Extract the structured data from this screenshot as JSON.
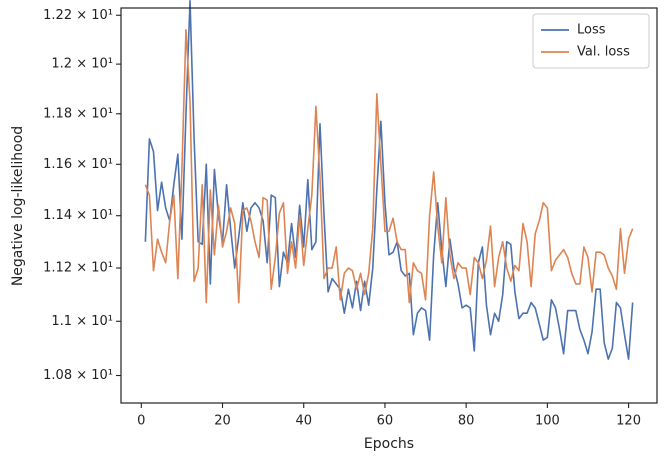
{
  "chart_data": {
    "type": "line",
    "xlabel": "Epochs",
    "ylabel": "Negative log-likelihood",
    "x": [
      1,
      2,
      3,
      4,
      5,
      6,
      7,
      8,
      9,
      10,
      11,
      12,
      13,
      14,
      15,
      16,
      17,
      18,
      19,
      20,
      21,
      22,
      23,
      24,
      25,
      26,
      27,
      28,
      29,
      30,
      31,
      32,
      33,
      34,
      35,
      36,
      37,
      38,
      39,
      40,
      41,
      42,
      43,
      44,
      45,
      46,
      47,
      48,
      49,
      50,
      51,
      52,
      53,
      54,
      55,
      56,
      57,
      58,
      59,
      60,
      61,
      62,
      63,
      64,
      65,
      66,
      67,
      68,
      69,
      70,
      71,
      72,
      73,
      74,
      75,
      76,
      77,
      78,
      79,
      80,
      81,
      82,
      83,
      84,
      85,
      86,
      87,
      88,
      89,
      90,
      91,
      92,
      93,
      94,
      95,
      96,
      97,
      98,
      99,
      100,
      101,
      102,
      103,
      104,
      105,
      106,
      107,
      108,
      109,
      110,
      111,
      112,
      113,
      114,
      115,
      116,
      117,
      118,
      119,
      120,
      121
    ],
    "series": [
      {
        "name": "Loss",
        "color": "#4c72b0",
        "values": [
          11.3,
          11.7,
          11.65,
          11.42,
          11.53,
          11.43,
          11.38,
          11.52,
          11.64,
          11.31,
          11.8,
          12.26,
          11.7,
          11.3,
          11.29,
          11.6,
          11.14,
          11.58,
          11.4,
          11.3,
          11.52,
          11.35,
          11.2,
          11.32,
          11.45,
          11.34,
          11.43,
          11.45,
          11.43,
          11.38,
          11.22,
          11.48,
          11.47,
          11.13,
          11.26,
          11.22,
          11.37,
          11.24,
          11.44,
          11.28,
          11.54,
          11.27,
          11.3,
          11.76,
          11.4,
          11.11,
          11.16,
          11.14,
          11.12,
          11.03,
          11.12,
          11.05,
          11.15,
          11.04,
          11.15,
          11.06,
          11.2,
          11.5,
          11.77,
          11.45,
          11.25,
          11.26,
          11.3,
          11.19,
          11.17,
          11.18,
          10.95,
          11.03,
          11.05,
          11.04,
          10.93,
          11.25,
          11.45,
          11.27,
          11.13,
          11.31,
          11.2,
          11.14,
          11.05,
          11.06,
          11.05,
          10.89,
          11.22,
          11.28,
          11.06,
          10.95,
          11.03,
          11.0,
          11.1,
          11.3,
          11.29,
          11.11,
          11.01,
          11.03,
          11.03,
          11.07,
          11.05,
          10.99,
          10.93,
          10.94,
          11.08,
          11.05,
          10.97,
          10.88,
          11.04,
          11.04,
          11.04,
          10.97,
          10.93,
          10.88,
          10.96,
          11.12,
          11.12,
          10.92,
          10.86,
          10.9,
          11.07,
          11.05,
          10.95,
          10.86,
          11.07
        ]
      },
      {
        "name": "Val. loss",
        "color": "#dd8452",
        "values": [
          11.52,
          11.48,
          11.19,
          11.31,
          11.26,
          11.22,
          11.38,
          11.48,
          11.16,
          11.58,
          12.14,
          11.85,
          11.15,
          11.2,
          11.52,
          11.07,
          11.5,
          11.25,
          11.44,
          11.28,
          11.34,
          11.43,
          11.37,
          11.07,
          11.42,
          11.43,
          11.38,
          11.3,
          11.24,
          11.47,
          11.46,
          11.12,
          11.24,
          11.41,
          11.45,
          11.18,
          11.3,
          11.2,
          11.4,
          11.21,
          11.35,
          11.48,
          11.83,
          11.55,
          11.16,
          11.2,
          11.2,
          11.28,
          11.08,
          11.18,
          11.2,
          11.19,
          11.12,
          11.18,
          11.1,
          11.18,
          11.35,
          11.88,
          11.6,
          11.34,
          11.34,
          11.39,
          11.3,
          11.27,
          11.27,
          11.07,
          11.22,
          11.19,
          11.18,
          11.08,
          11.4,
          11.57,
          11.36,
          11.22,
          11.47,
          11.25,
          11.16,
          11.22,
          11.2,
          11.2,
          11.1,
          11.24,
          11.22,
          11.16,
          11.23,
          11.36,
          11.13,
          11.24,
          11.3,
          11.2,
          11.15,
          11.21,
          11.19,
          11.37,
          11.3,
          11.13,
          11.33,
          11.38,
          11.45,
          11.43,
          11.19,
          11.23,
          11.25,
          11.27,
          11.24,
          11.18,
          11.14,
          11.14,
          11.28,
          11.24,
          11.11,
          11.26,
          11.26,
          11.25,
          11.2,
          11.17,
          11.12,
          11.35,
          11.18,
          11.31,
          11.35
        ]
      }
    ],
    "xlim": [
      -5,
      127
    ],
    "xticks": [
      0,
      20,
      40,
      60,
      80,
      100,
      120
    ],
    "ylim": [
      10.7,
      12.23
    ],
    "ylog": true,
    "yticks": [
      {
        "value": 10.8,
        "label": "1.08 × 10¹"
      },
      {
        "value": 11.0,
        "label": "1.1 × 10¹"
      },
      {
        "value": 11.2,
        "label": "1.12 × 10¹"
      },
      {
        "value": 11.4,
        "label": "1.14 × 10¹"
      },
      {
        "value": 11.6,
        "label": "1.16 × 10¹"
      },
      {
        "value": 11.8,
        "label": "1.18 × 10¹"
      },
      {
        "value": 12.0,
        "label": "1.2 × 10¹"
      },
      {
        "value": 12.2,
        "label": "1.22 × 10¹"
      }
    ],
    "grid": false,
    "legend": "upper right"
  }
}
